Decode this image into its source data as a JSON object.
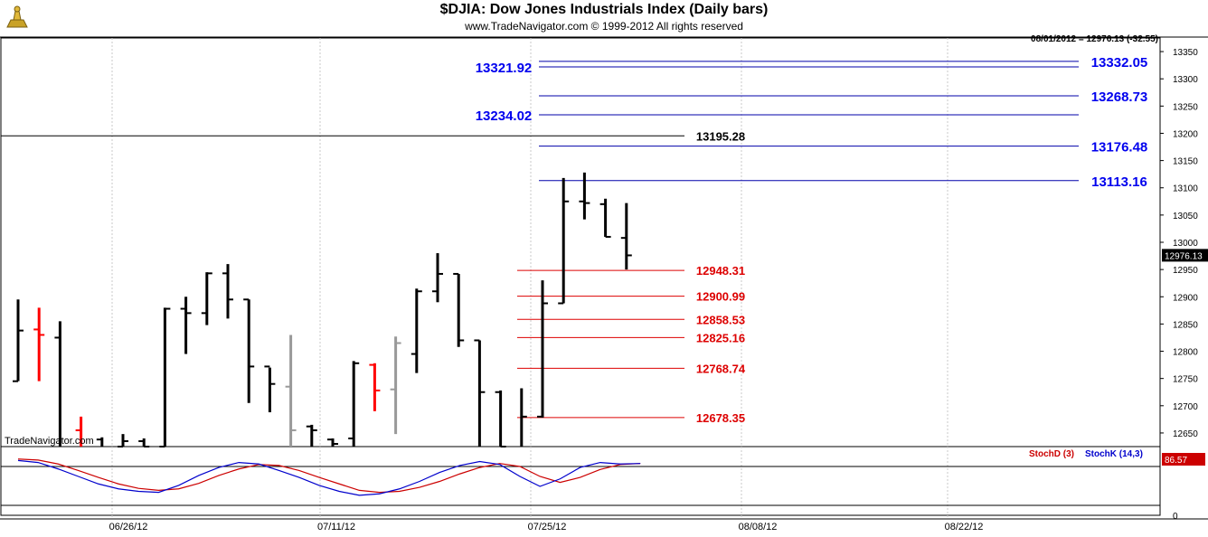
{
  "header": {
    "title": "$DJIA:  Dow Jones Industrials Index  (Daily bars)",
    "subtitle": "www.TradeNavigator.com © 1999-2012 All rights reserved",
    "quote": "08/01/2012 = 12976.13 (-32.55)",
    "watermark": "TradeNavigator.com"
  },
  "colors": {
    "bar": "#000000",
    "bar_down": "#ff0000",
    "bar_gray": "#999999",
    "resistance": "#0000aa",
    "support": "#dd0000",
    "stochD": "#cc0000",
    "stochK": "#0000cc",
    "grid": "#c8c8c8"
  },
  "chart_data": {
    "type": "ohlc",
    "ylim": [
      12625,
      13375
    ],
    "y_ticks": [
      12650,
      12700,
      12750,
      12800,
      12850,
      12900,
      12950,
      13000,
      13050,
      13100,
      13150,
      13200,
      13250,
      13300,
      13350
    ],
    "x_ticks": [
      "06/26/12",
      "07/11/12",
      "07/25/12",
      "08/08/12",
      "08/22/12"
    ],
    "last_price": "12976.13",
    "bars": [
      {
        "o": 12745,
        "h": 12895,
        "l": 12745,
        "c": 12838,
        "color": "black"
      },
      {
        "o": 12840,
        "h": 12880,
        "l": 12745,
        "c": 12830,
        "color": "red"
      },
      {
        "o": 12825,
        "h": 12855,
        "l": 12600,
        "c": 12600,
        "color": "black"
      },
      {
        "o": 12655,
        "h": 12680,
        "l": 12600,
        "c": 12605,
        "color": "red"
      },
      {
        "o": 12638,
        "h": 12642,
        "l": 12600,
        "c": 12610,
        "color": "black"
      },
      {
        "o": 12625,
        "h": 12648,
        "l": 12610,
        "c": 12635,
        "color": "black"
      },
      {
        "o": 12635,
        "h": 12640,
        "l": 12610,
        "c": 12625,
        "color": "black"
      },
      {
        "o": 12625,
        "h": 12880,
        "l": 12610,
        "c": 12878,
        "color": "black"
      },
      {
        "o": 12878,
        "h": 12900,
        "l": 12795,
        "c": 12870,
        "color": "black"
      },
      {
        "o": 12870,
        "h": 12945,
        "l": 12848,
        "c": 12943,
        "color": "black"
      },
      {
        "o": 12943,
        "h": 12960,
        "l": 12860,
        "c": 12895,
        "color": "black"
      },
      {
        "o": 12895,
        "h": 12895,
        "l": 12705,
        "c": 12772,
        "color": "black"
      },
      {
        "o": 12772,
        "h": 12770,
        "l": 12688,
        "c": 12740,
        "color": "black"
      },
      {
        "o": 12735,
        "h": 12830,
        "l": 12620,
        "c": 12655,
        "color": "gray"
      },
      {
        "o": 12662,
        "h": 12665,
        "l": 12620,
        "c": 12655,
        "color": "black"
      },
      {
        "o": 12638,
        "h": 12640,
        "l": 12620,
        "c": 12630,
        "color": "black"
      },
      {
        "o": 12640,
        "h": 12782,
        "l": 12620,
        "c": 12778,
        "color": "black"
      },
      {
        "o": 12775,
        "h": 12778,
        "l": 12690,
        "c": 12728,
        "color": "red"
      },
      {
        "o": 12730,
        "h": 12827,
        "l": 12648,
        "c": 12815,
        "color": "gray"
      },
      {
        "o": 12795,
        "h": 12915,
        "l": 12760,
        "c": 12910,
        "color": "black"
      },
      {
        "o": 12910,
        "h": 12980,
        "l": 12890,
        "c": 12942,
        "color": "black"
      },
      {
        "o": 12942,
        "h": 12942,
        "l": 12808,
        "c": 12820,
        "color": "black"
      },
      {
        "o": 12820,
        "h": 12820,
        "l": 12620,
        "c": 12725,
        "color": "black"
      },
      {
        "o": 12725,
        "h": 12728,
        "l": 12620,
        "c": 12625,
        "color": "black"
      },
      {
        "o": 12622,
        "h": 12732,
        "l": 12615,
        "c": 12680,
        "color": "black"
      },
      {
        "o": 12680,
        "h": 12930,
        "l": 12678,
        "c": 12888,
        "color": "black"
      },
      {
        "o": 12888,
        "h": 13118,
        "l": 12888,
        "c": 13075,
        "color": "black"
      },
      {
        "o": 13075,
        "h": 13128,
        "l": 13042,
        "c": 13072,
        "color": "black"
      },
      {
        "o": 13070,
        "h": 13080,
        "l": 13010,
        "c": 13010,
        "color": "black"
      },
      {
        "o": 13008,
        "h": 13072,
        "l": 12950,
        "c": 12976,
        "color": "black"
      }
    ],
    "resistance_levels": [
      {
        "value": 13332.05,
        "label": "13332.05",
        "side": "right"
      },
      {
        "value": 13321.92,
        "label": "13321.92",
        "side": "left"
      },
      {
        "value": 13268.73,
        "label": "13268.73",
        "side": "right"
      },
      {
        "value": 13234.02,
        "label": "13234.02",
        "side": "left"
      },
      {
        "value": 13176.48,
        "label": "13176.48",
        "side": "right"
      },
      {
        "value": 13113.16,
        "label": "13113.16",
        "side": "right"
      }
    ],
    "black_level": {
      "value": 13195.28,
      "label": "13195.28"
    },
    "support_levels": [
      {
        "value": 12948.31,
        "label": "12948.31"
      },
      {
        "value": 12900.99,
        "label": "12900.99"
      },
      {
        "value": 12858.53,
        "label": "12858.53"
      },
      {
        "value": 12825.16,
        "label": "12825.16"
      },
      {
        "value": 12768.74,
        "label": "12768.74"
      },
      {
        "value": 12678.35,
        "label": "12678.35"
      }
    ],
    "stochastic": {
      "labelD": "StochD (3)",
      "labelK": "StochK (14,3)",
      "last_value": "86.57",
      "bottom_tick": "0",
      "ylim": [
        0,
        100
      ],
      "k": [
        92,
        88,
        75,
        60,
        45,
        35,
        30,
        28,
        42,
        62,
        78,
        88,
        85,
        72,
        58,
        42,
        30,
        22,
        25,
        35,
        50,
        68,
        82,
        90,
        84,
        60,
        40,
        55,
        78,
        88,
        85,
        86
      ],
      "d": [
        95,
        93,
        85,
        72,
        58,
        45,
        36,
        32,
        35,
        46,
        62,
        75,
        84,
        82,
        72,
        58,
        45,
        32,
        28,
        30,
        38,
        50,
        65,
        78,
        86,
        80,
        60,
        48,
        58,
        74,
        84,
        86
      ]
    }
  }
}
